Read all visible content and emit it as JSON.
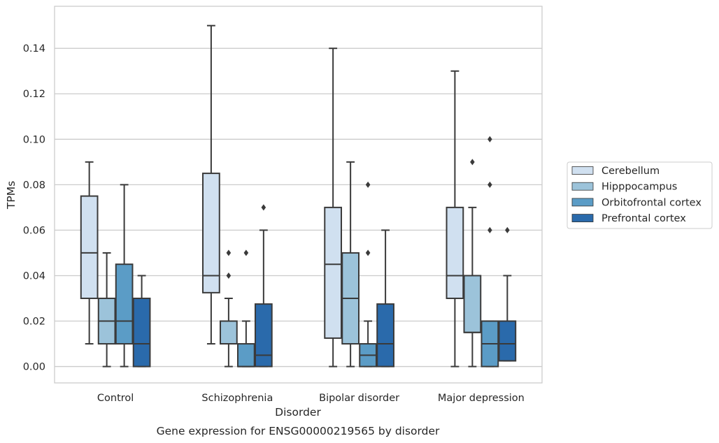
{
  "chart_data": {
    "type": "box",
    "title": "Gene expression for ENSG00000219565 by disorder",
    "xlabel": "Disorder",
    "ylabel": "TPMs",
    "ylim": [
      -0.0072,
      0.1585
    ],
    "y_ticks": [
      "0.00",
      "0.02",
      "0.04",
      "0.06",
      "0.08",
      "0.10",
      "0.12",
      "0.14"
    ],
    "grid": "horizontal",
    "legend_position": "right",
    "categories": [
      "Control",
      "Schizophrenia",
      "Bipolar disorder",
      "Major depression"
    ],
    "series": [
      {
        "name": "Cerebellum",
        "color": "#d0e0f0",
        "boxes": [
          {
            "whislo": 0.01,
            "q1": 0.03,
            "med": 0.05,
            "q3": 0.075,
            "whishi": 0.09,
            "fliers": []
          },
          {
            "whislo": 0.01,
            "q1": 0.0325,
            "med": 0.04,
            "q3": 0.085,
            "whishi": 0.15,
            "fliers": []
          },
          {
            "whislo": 0.0,
            "q1": 0.0125,
            "med": 0.045,
            "q3": 0.07,
            "whishi": 0.14,
            "fliers": []
          },
          {
            "whislo": 0.0,
            "q1": 0.03,
            "med": 0.04,
            "q3": 0.07,
            "whishi": 0.13,
            "fliers": []
          }
        ]
      },
      {
        "name": "Hipppocampus",
        "color": "#9cc3da",
        "boxes": [
          {
            "whislo": 0.0,
            "q1": 0.01,
            "med": 0.02,
            "q3": 0.03,
            "whishi": 0.05,
            "fliers": []
          },
          {
            "whislo": 0.0,
            "q1": 0.01,
            "med": 0.01,
            "q3": 0.02,
            "whishi": 0.03,
            "fliers": [
              0.04,
              0.05
            ]
          },
          {
            "whislo": 0.0,
            "q1": 0.01,
            "med": 0.03,
            "q3": 0.05,
            "whishi": 0.09,
            "fliers": []
          },
          {
            "whislo": 0.0,
            "q1": 0.015,
            "med": 0.015,
            "q3": 0.04,
            "whishi": 0.07,
            "fliers": [
              0.09
            ]
          }
        ]
      },
      {
        "name": "Orbitofrontal cortex",
        "color": "#5b9cc6",
        "boxes": [
          {
            "whislo": 0.0,
            "q1": 0.01,
            "med": 0.02,
            "q3": 0.045,
            "whishi": 0.08,
            "fliers": []
          },
          {
            "whislo": 0.0,
            "q1": 0.0,
            "med": 0.0,
            "q3": 0.01,
            "whishi": 0.02,
            "fliers": [
              0.05
            ]
          },
          {
            "whislo": 0.0,
            "q1": 0.0,
            "med": 0.005,
            "q3": 0.01,
            "whishi": 0.02,
            "fliers": [
              0.05,
              0.08
            ]
          },
          {
            "whislo": 0.0,
            "q1": 0.0,
            "med": 0.01,
            "q3": 0.02,
            "whishi": 0.02,
            "fliers": [
              0.06,
              0.08,
              0.1
            ]
          }
        ]
      },
      {
        "name": "Prefrontal cortex",
        "color": "#2a6aab",
        "boxes": [
          {
            "whislo": 0.0,
            "q1": 0.0,
            "med": 0.01,
            "q3": 0.03,
            "whishi": 0.04,
            "fliers": []
          },
          {
            "whislo": 0.0,
            "q1": 0.0,
            "med": 0.005,
            "q3": 0.0275,
            "whishi": 0.06,
            "fliers": [
              0.07
            ]
          },
          {
            "whislo": 0.0,
            "q1": 0.0,
            "med": 0.01,
            "q3": 0.0275,
            "whishi": 0.06,
            "fliers": []
          },
          {
            "whislo": 0.0025,
            "q1": 0.0025,
            "med": 0.01,
            "q3": 0.02,
            "whishi": 0.04,
            "fliers": [
              0.06
            ]
          }
        ]
      }
    ]
  }
}
